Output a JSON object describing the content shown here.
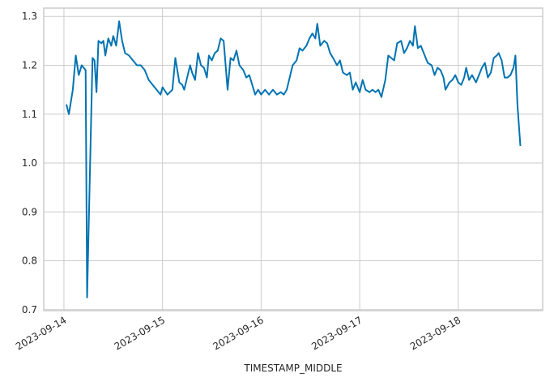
{
  "chart_data": {
    "type": "line",
    "xlabel": "TIMESTAMP_MIDDLE",
    "x": [
      0.025,
      0.05,
      0.09,
      0.12,
      0.15,
      0.18,
      0.22,
      0.235,
      0.26,
      0.29,
      0.31,
      0.33,
      0.35,
      0.38,
      0.4,
      0.42,
      0.45,
      0.48,
      0.5,
      0.53,
      0.56,
      0.59,
      0.62,
      0.66,
      0.7,
      0.74,
      0.78,
      0.82,
      0.86,
      0.9,
      0.94,
      0.98,
      1.0,
      1.05,
      1.1,
      1.13,
      1.17,
      1.2,
      1.22,
      1.25,
      1.28,
      1.3,
      1.33,
      1.36,
      1.39,
      1.42,
      1.45,
      1.47,
      1.5,
      1.53,
      1.56,
      1.59,
      1.62,
      1.64,
      1.66,
      1.69,
      1.72,
      1.75,
      1.78,
      1.82,
      1.85,
      1.88,
      1.91,
      1.94,
      1.97,
      2.0,
      2.04,
      2.08,
      2.12,
      2.16,
      2.2,
      2.23,
      2.26,
      2.29,
      2.32,
      2.36,
      2.39,
      2.42,
      2.46,
      2.49,
      2.52,
      2.55,
      2.57,
      2.6,
      2.64,
      2.67,
      2.7,
      2.73,
      2.77,
      2.8,
      2.83,
      2.87,
      2.9,
      2.93,
      2.96,
      3.0,
      3.03,
      3.06,
      3.1,
      3.13,
      3.16,
      3.19,
      3.22,
      3.26,
      3.29,
      3.32,
      3.35,
      3.38,
      3.42,
      3.45,
      3.48,
      3.51,
      3.54,
      3.56,
      3.59,
      3.62,
      3.66,
      3.69,
      3.73,
      3.76,
      3.79,
      3.82,
      3.85,
      3.87,
      3.91,
      3.94,
      3.97,
      4.0,
      4.03,
      4.06,
      4.08,
      4.11,
      4.14,
      4.18,
      4.21,
      4.24,
      4.27,
      4.3,
      4.33,
      4.36,
      4.39,
      4.41,
      4.44,
      4.47,
      4.5,
      4.53,
      4.56,
      4.58,
      4.6,
      4.63
    ],
    "series": [
      {
        "color": "#0173b2",
        "values": [
          1.12,
          1.1,
          1.15,
          1.22,
          1.18,
          1.2,
          1.19,
          0.725,
          0.95,
          1.215,
          1.21,
          1.145,
          1.25,
          1.245,
          1.25,
          1.22,
          1.255,
          1.24,
          1.26,
          1.24,
          1.29,
          1.25,
          1.225,
          1.22,
          1.21,
          1.2,
          1.2,
          1.19,
          1.17,
          1.16,
          1.15,
          1.14,
          1.155,
          1.14,
          1.15,
          1.215,
          1.165,
          1.16,
          1.15,
          1.175,
          1.2,
          1.185,
          1.17,
          1.225,
          1.2,
          1.195,
          1.175,
          1.22,
          1.21,
          1.225,
          1.23,
          1.255,
          1.25,
          1.2,
          1.15,
          1.215,
          1.21,
          1.23,
          1.2,
          1.19,
          1.175,
          1.18,
          1.16,
          1.14,
          1.15,
          1.14,
          1.15,
          1.14,
          1.15,
          1.14,
          1.145,
          1.14,
          1.15,
          1.175,
          1.2,
          1.21,
          1.235,
          1.23,
          1.24,
          1.255,
          1.265,
          1.255,
          1.285,
          1.24,
          1.25,
          1.245,
          1.225,
          1.215,
          1.2,
          1.21,
          1.185,
          1.18,
          1.185,
          1.15,
          1.165,
          1.145,
          1.17,
          1.15,
          1.145,
          1.15,
          1.145,
          1.15,
          1.135,
          1.17,
          1.22,
          1.215,
          1.21,
          1.245,
          1.25,
          1.225,
          1.235,
          1.25,
          1.24,
          1.28,
          1.235,
          1.24,
          1.22,
          1.205,
          1.2,
          1.18,
          1.195,
          1.19,
          1.175,
          1.15,
          1.165,
          1.17,
          1.18,
          1.165,
          1.16,
          1.175,
          1.195,
          1.17,
          1.18,
          1.165,
          1.18,
          1.195,
          1.205,
          1.175,
          1.185,
          1.215,
          1.22,
          1.225,
          1.21,
          1.175,
          1.175,
          1.18,
          1.195,
          1.22,
          1.12,
          1.035
        ]
      }
    ],
    "xlim": [
      -0.205,
      4.856
    ],
    "xticks": [
      {
        "value": 0,
        "label": "2023-09-14"
      },
      {
        "value": 1,
        "label": "2023-09-15"
      },
      {
        "value": 2,
        "label": "2023-09-16"
      },
      {
        "value": 3,
        "label": "2023-09-17"
      },
      {
        "value": 4,
        "label": "2023-09-18"
      }
    ],
    "ylim": [
      0.698,
      1.317
    ],
    "yticks": [
      {
        "value": 0.7,
        "label": "0.7"
      },
      {
        "value": 0.8,
        "label": "0.8"
      },
      {
        "value": 0.9,
        "label": "0.9"
      },
      {
        "value": 1.0,
        "label": "1.0"
      },
      {
        "value": 1.1,
        "label": "1.1"
      },
      {
        "value": 1.2,
        "label": "1.2"
      },
      {
        "value": 1.3,
        "label": "1.3"
      }
    ],
    "grid": true
  }
}
